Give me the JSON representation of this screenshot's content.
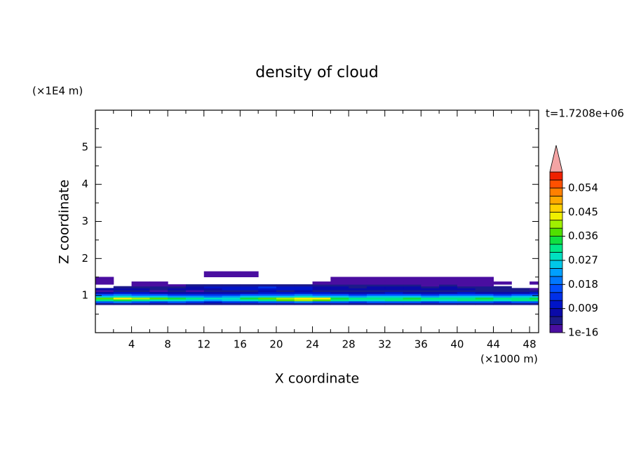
{
  "chart_data": {
    "type": "contour",
    "title": "density of cloud",
    "xlabel": "X coordinate",
    "ylabel": "Z coordinate",
    "xunit": "(×1000 m)",
    "yunit": "(×1E4 m)",
    "annotation": "t=1.7208e+06",
    "xlim": [
      0,
      49
    ],
    "ylim": [
      0,
      6
    ],
    "xticks": [
      4,
      8,
      12,
      16,
      20,
      24,
      28,
      32,
      36,
      40,
      44,
      48
    ],
    "yticks": [
      1,
      2,
      3,
      4,
      5
    ],
    "x": [
      1,
      3,
      5,
      7,
      9,
      11,
      13,
      15,
      17,
      19,
      21,
      23,
      25,
      27,
      29,
      31,
      33,
      35,
      37,
      39,
      41,
      43,
      45,
      47,
      49
    ],
    "z": [
      0.78,
      0.83,
      0.88,
      0.93,
      0.98,
      1.03,
      1.08,
      1.13,
      1.18,
      1.23,
      1.28,
      1.33,
      1.43,
      1.58
    ],
    "values": [
      [
        0.004,
        0.004,
        0.005,
        0.004,
        0.004,
        0.004,
        0.003,
        0.004,
        0.005,
        0.004,
        0.004,
        0.004,
        0.004,
        0.004,
        0.005,
        0.004,
        0.004,
        0.004,
        0.004,
        0.004,
        0.005,
        0.004,
        0.004,
        0.004,
        0.004
      ],
      [
        0.016,
        0.018,
        0.015,
        0.014,
        0.016,
        0.013,
        0.011,
        0.012,
        0.014,
        0.016,
        0.017,
        0.018,
        0.016,
        0.015,
        0.014,
        0.015,
        0.016,
        0.015,
        0.014,
        0.015,
        0.016,
        0.015,
        0.014,
        0.015,
        0.016
      ],
      [
        0.03,
        0.034,
        0.031,
        0.028,
        0.027,
        0.024,
        0.022,
        0.025,
        0.028,
        0.031,
        0.036,
        0.04,
        0.038,
        0.03,
        0.028,
        0.029,
        0.031,
        0.03,
        0.028,
        0.029,
        0.03,
        0.031,
        0.029,
        0.03,
        0.031
      ],
      [
        0.038,
        0.043,
        0.04,
        0.036,
        0.033,
        0.03,
        0.028,
        0.029,
        0.033,
        0.037,
        0.039,
        0.044,
        0.042,
        0.034,
        0.031,
        0.03,
        0.032,
        0.033,
        0.03,
        0.031,
        0.032,
        0.033,
        0.031,
        0.032,
        0.034
      ],
      [
        0.026,
        0.028,
        0.025,
        0.024,
        0.023,
        0.021,
        0.02,
        0.022,
        0.024,
        0.026,
        0.025,
        0.027,
        0.025,
        0.024,
        0.023,
        0.024,
        0.025,
        0.024,
        0.023,
        0.024,
        0.025,
        0.024,
        0.023,
        0.024,
        0.025
      ],
      [
        0.016,
        0.018,
        0.016,
        0.015,
        0.014,
        0.013,
        0.012,
        0.013,
        0.015,
        0.017,
        0.016,
        0.018,
        0.016,
        0.015,
        0.014,
        0.015,
        0.016,
        0.015,
        0.014,
        0.015,
        0.016,
        0.015,
        0.014,
        0.015,
        0.016
      ],
      [
        0.008,
        0.01,
        0.009,
        0.007,
        0.007,
        0.006,
        0.006,
        0.007,
        0.008,
        0.01,
        0.009,
        0.011,
        0.009,
        0.008,
        0.007,
        0.008,
        0.009,
        0.008,
        0.007,
        0.008,
        0.009,
        0.008,
        0.007,
        0.008,
        0.009
      ],
      [
        0.002,
        0.004,
        0.003,
        0.002,
        0.003,
        0.002,
        0.003,
        0.004,
        0.005,
        0.006,
        0.005,
        0.006,
        0.005,
        0.004,
        0.003,
        0.004,
        0.005,
        0.004,
        0.003,
        0.004,
        0.005,
        0.004,
        0.003,
        0.003,
        0.003
      ],
      [
        0.006,
        0.008,
        0.007,
        0.005,
        0.006,
        0.007,
        0.008,
        0.01,
        0.009,
        0.011,
        0.01,
        0.009,
        0.008,
        0.007,
        0.006,
        0.007,
        0.008,
        0.007,
        0.006,
        0.007,
        0.006,
        0.005,
        0.004,
        0.003,
        0.002
      ],
      [
        null,
        0.003,
        0.004,
        0.003,
        0.005,
        0.007,
        0.009,
        0.011,
        0.01,
        0.012,
        0.011,
        0.01,
        0.008,
        0.006,
        0.005,
        0.006,
        0.007,
        0.006,
        0.005,
        0.006,
        0.005,
        0.004,
        0.003,
        null,
        null
      ],
      [
        null,
        null,
        0.001,
        0.001,
        0.002,
        0.003,
        0.004,
        0.005,
        0.004,
        0.005,
        0.005,
        0.004,
        0.004,
        0.003,
        0.003,
        0.004,
        0.003,
        0.003,
        0.002,
        0.003,
        0.002,
        0.002,
        null,
        null,
        null
      ],
      [
        0.001,
        null,
        0.001,
        0.001,
        null,
        null,
        null,
        null,
        null,
        null,
        null,
        null,
        0.001,
        0.002,
        0.002,
        0.002,
        0.001,
        0.002,
        0.002,
        0.001,
        0.001,
        0.001,
        0.001,
        null,
        0.001
      ],
      [
        0.001,
        null,
        null,
        null,
        null,
        null,
        null,
        null,
        null,
        null,
        null,
        null,
        null,
        0.001,
        0.001,
        0.001,
        0.001,
        0.001,
        0.001,
        0.001,
        0.001,
        0.001,
        null,
        null,
        null
      ],
      [
        null,
        null,
        null,
        null,
        null,
        null,
        0.001,
        0.001,
        0.001,
        null,
        null,
        null,
        null,
        null,
        null,
        null,
        null,
        null,
        null,
        null,
        null,
        null,
        null,
        null,
        null
      ]
    ],
    "clim": [
      0,
      0.06
    ],
    "cticks": [
      1e-16,
      0.009,
      0.018,
      0.027,
      0.036,
      0.045,
      0.054
    ],
    "colors": [
      "#4a0ea0",
      "#1c1a8a",
      "#0a0aa8",
      "#0014c8",
      "#0030e8",
      "#0050ff",
      "#0078ff",
      "#00a0ff",
      "#00c8e8",
      "#00e0c0",
      "#00e888",
      "#10e040",
      "#50e000",
      "#a0f000",
      "#f0f000",
      "#ffd000",
      "#ffa800",
      "#ff8000",
      "#ff5000",
      "#f02000"
    ],
    "extend_color": "#f4a4a4"
  }
}
